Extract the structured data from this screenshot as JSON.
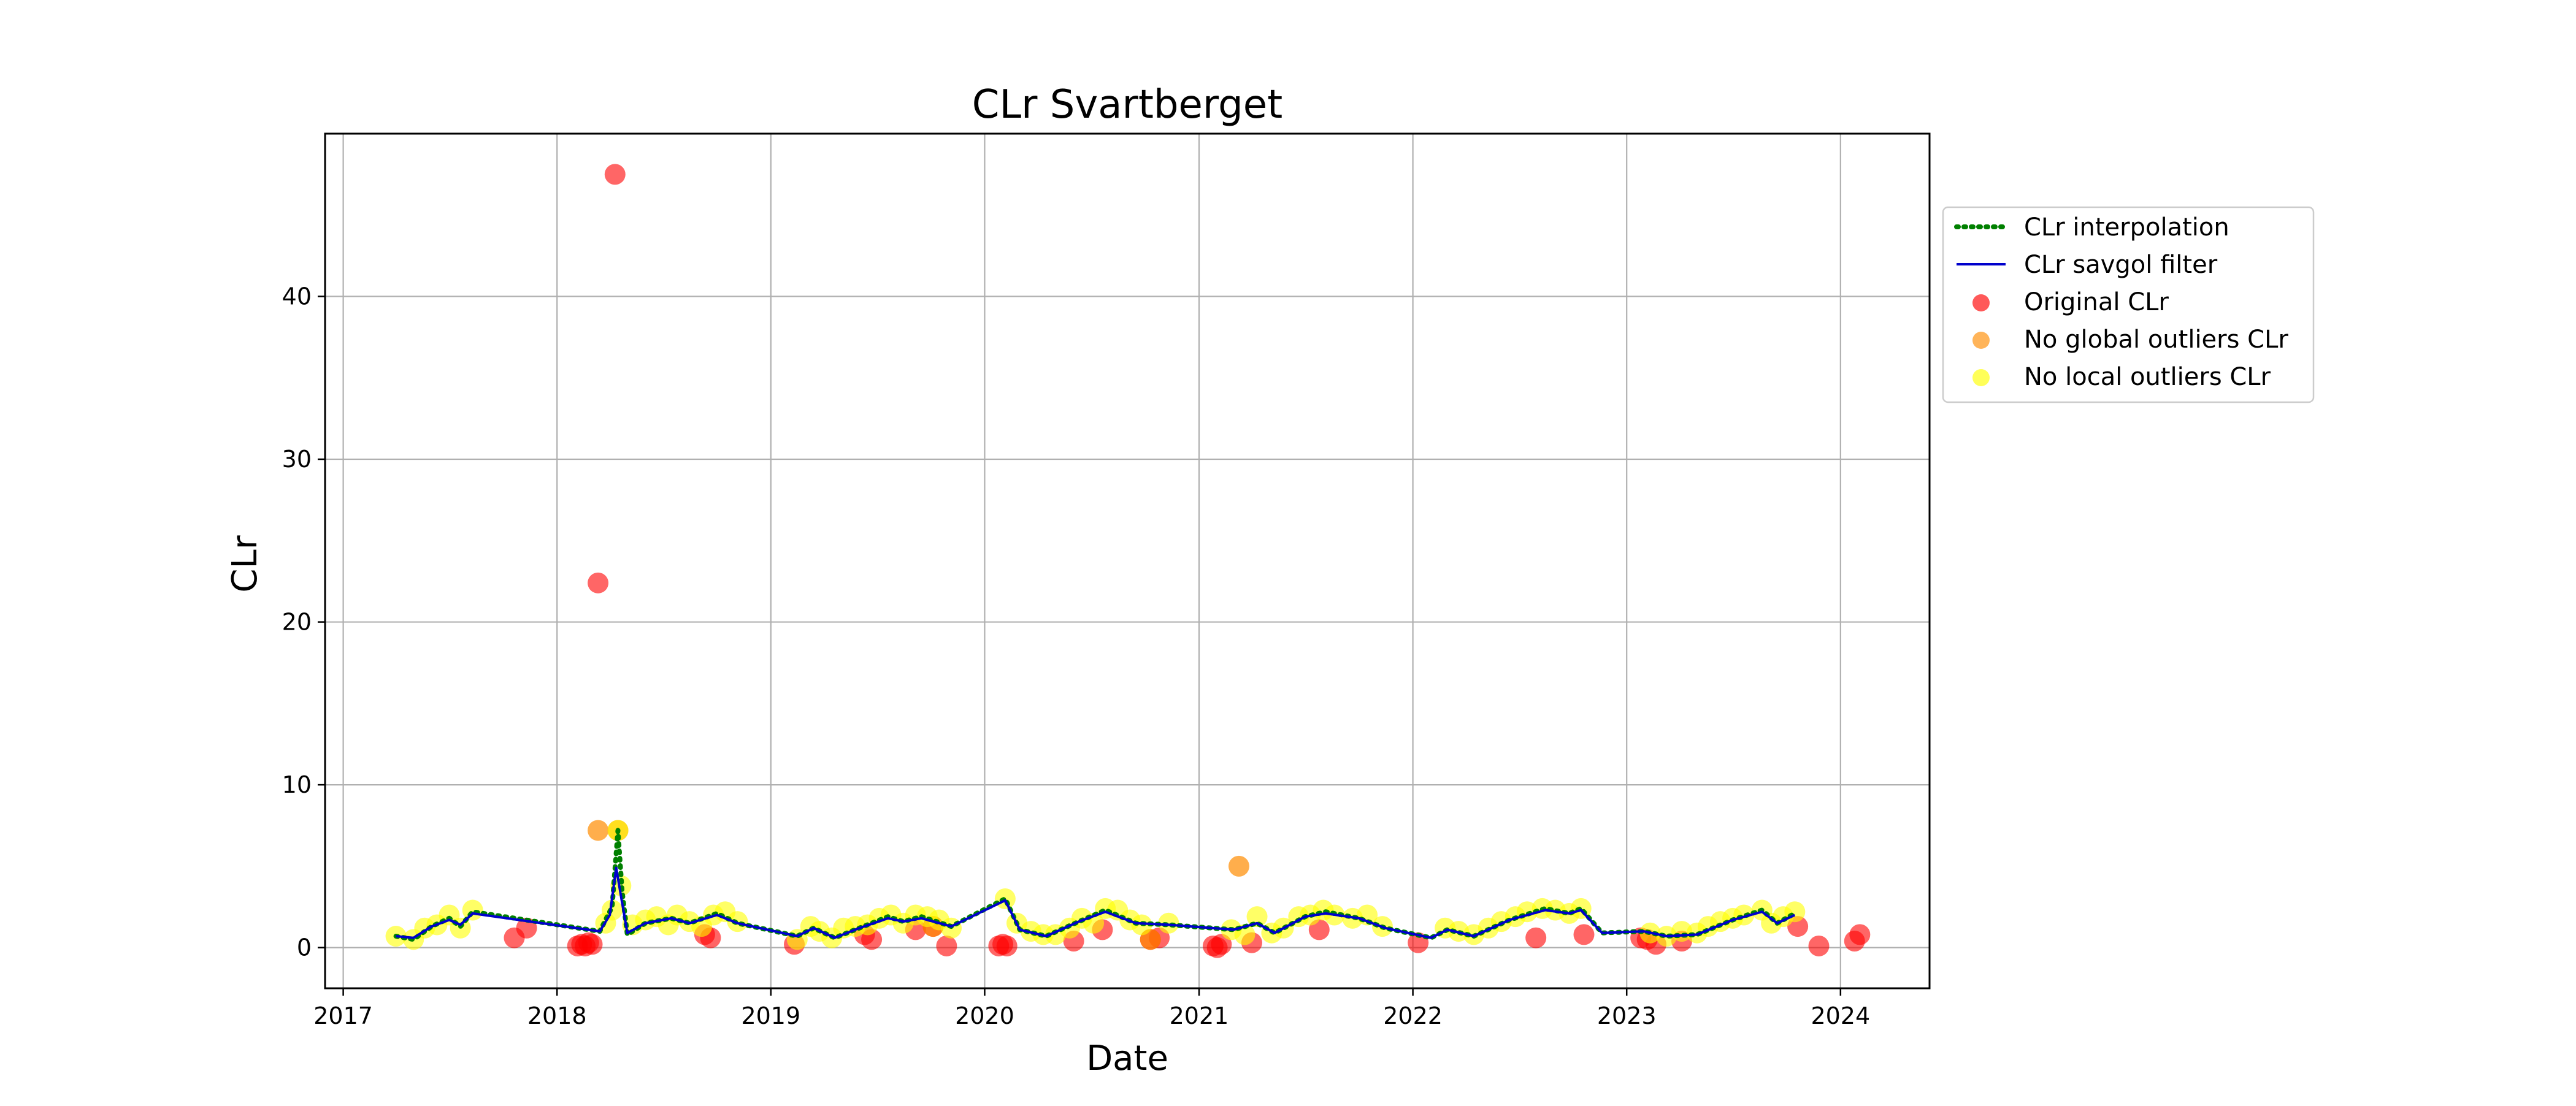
{
  "chart_data": {
    "type": "scatter",
    "title": "CLr Svartberget",
    "xlabel": "Date",
    "ylabel": "CLr",
    "x_is_date": true,
    "xlim": [
      "2016-12-01",
      "2024-06-01"
    ],
    "ylim": [
      -2.5,
      50
    ],
    "x_ticks": [
      "2017",
      "2018",
      "2019",
      "2020",
      "2021",
      "2022",
      "2023",
      "2024"
    ],
    "y_ticks": [
      0,
      10,
      20,
      30,
      40
    ],
    "grid": true,
    "legend_position": "outside-right-top",
    "legend": [
      {
        "label": "CLr interpolation",
        "style": "dotted-line",
        "color": "#008000"
      },
      {
        "label": "CLr savgol filter",
        "style": "line",
        "color": "#0000cc"
      },
      {
        "label": "Original CLr",
        "style": "marker",
        "color": "#ff0000"
      },
      {
        "label": "No global outliers CLr",
        "style": "marker",
        "color": "#ff8c00"
      },
      {
        "label": "No local outliers CLr",
        "style": "marker",
        "color": "#ffff00"
      }
    ],
    "series": [
      {
        "name": "Original CLr",
        "type": "scatter",
        "color": "#ff0000",
        "opacity": 0.6,
        "points": [
          [
            "2017-10-20",
            0.6
          ],
          [
            "2017-11-10",
            1.2
          ],
          [
            "2018-02-05",
            0.1
          ],
          [
            "2018-02-12",
            0.2
          ],
          [
            "2018-02-18",
            0.1
          ],
          [
            "2018-02-24",
            0.3
          ],
          [
            "2018-03-02",
            0.2
          ],
          [
            "2018-03-12",
            22.4
          ],
          [
            "2018-04-10",
            47.5
          ],
          [
            "2018-09-10",
            0.8
          ],
          [
            "2018-09-20",
            0.6
          ],
          [
            "2019-02-10",
            0.2
          ],
          [
            "2019-06-10",
            0.8
          ],
          [
            "2019-06-22",
            0.5
          ],
          [
            "2019-09-05",
            1.1
          ],
          [
            "2019-10-05",
            1.3
          ],
          [
            "2019-10-28",
            0.1
          ],
          [
            "2020-01-25",
            0.1
          ],
          [
            "2020-02-01",
            0.2
          ],
          [
            "2020-02-08",
            0.1
          ],
          [
            "2020-06-01",
            0.4
          ],
          [
            "2020-07-20",
            1.1
          ],
          [
            "2020-10-10",
            0.5
          ],
          [
            "2020-10-25",
            0.6
          ],
          [
            "2021-01-25",
            0.1
          ],
          [
            "2021-02-01",
            0.0
          ],
          [
            "2021-02-08",
            0.2
          ],
          [
            "2021-04-01",
            0.3
          ],
          [
            "2021-07-25",
            1.1
          ],
          [
            "2022-01-10",
            0.3
          ],
          [
            "2022-07-30",
            0.6
          ],
          [
            "2022-10-20",
            0.8
          ],
          [
            "2023-01-25",
            0.6
          ],
          [
            "2023-02-05",
            0.5
          ],
          [
            "2023-02-20",
            0.2
          ],
          [
            "2023-04-05",
            0.4
          ],
          [
            "2023-10-20",
            1.3
          ],
          [
            "2023-11-25",
            0.1
          ],
          [
            "2024-01-25",
            0.4
          ],
          [
            "2024-02-03",
            0.8
          ]
        ]
      },
      {
        "name": "No global outliers CLr",
        "type": "scatter",
        "color": "#ff8c00",
        "opacity": 0.7,
        "points": [
          [
            "2018-03-12",
            7.2
          ],
          [
            "2018-04-15",
            7.2
          ],
          [
            "2019-10-05",
            1.3
          ],
          [
            "2020-10-10",
            0.5
          ],
          [
            "2021-03-10",
            5.0
          ]
        ]
      },
      {
        "name": "No local outliers CLr",
        "type": "scatter",
        "color": "#ffff00",
        "opacity": 0.6,
        "points": [
          [
            "2017-04-01",
            0.7
          ],
          [
            "2017-05-01",
            0.5
          ],
          [
            "2017-05-20",
            1.2
          ],
          [
            "2017-06-10",
            1.4
          ],
          [
            "2017-07-01",
            2.0
          ],
          [
            "2017-07-20",
            1.2
          ],
          [
            "2017-08-10",
            2.3
          ],
          [
            "2018-03-25",
            1.5
          ],
          [
            "2018-04-05",
            2.3
          ],
          [
            "2018-04-15",
            7.2
          ],
          [
            "2018-04-20",
            3.8
          ],
          [
            "2018-05-10",
            1.4
          ],
          [
            "2018-06-01",
            1.7
          ],
          [
            "2018-06-20",
            1.9
          ],
          [
            "2018-07-10",
            1.4
          ],
          [
            "2018-07-25",
            2.0
          ],
          [
            "2018-08-15",
            1.6
          ],
          [
            "2018-09-05",
            1.3
          ],
          [
            "2018-09-25",
            2.0
          ],
          [
            "2018-10-15",
            2.2
          ],
          [
            "2018-11-05",
            1.6
          ],
          [
            "2019-02-15",
            0.5
          ],
          [
            "2019-03-10",
            1.3
          ],
          [
            "2019-03-25",
            1.0
          ],
          [
            "2019-04-15",
            0.6
          ],
          [
            "2019-05-05",
            1.2
          ],
          [
            "2019-05-25",
            1.3
          ],
          [
            "2019-06-15",
            1.4
          ],
          [
            "2019-07-05",
            1.8
          ],
          [
            "2019-07-25",
            2.0
          ],
          [
            "2019-08-15",
            1.5
          ],
          [
            "2019-09-05",
            2.0
          ],
          [
            "2019-09-25",
            1.9
          ],
          [
            "2019-10-15",
            1.7
          ],
          [
            "2019-11-05",
            1.2
          ],
          [
            "2020-02-05",
            3.0
          ],
          [
            "2020-02-25",
            1.5
          ],
          [
            "2020-03-20",
            1.0
          ],
          [
            "2020-04-10",
            0.8
          ],
          [
            "2020-05-01",
            0.8
          ],
          [
            "2020-05-25",
            1.2
          ],
          [
            "2020-06-15",
            1.8
          ],
          [
            "2020-07-05",
            1.5
          ],
          [
            "2020-07-25",
            2.4
          ],
          [
            "2020-08-15",
            2.3
          ],
          [
            "2020-09-05",
            1.7
          ],
          [
            "2020-09-25",
            1.4
          ],
          [
            "2020-11-10",
            1.5
          ],
          [
            "2021-02-25",
            1.1
          ],
          [
            "2021-03-20",
            0.8
          ],
          [
            "2021-04-10",
            1.9
          ],
          [
            "2021-05-05",
            0.9
          ],
          [
            "2021-05-25",
            1.2
          ],
          [
            "2021-06-20",
            1.9
          ],
          [
            "2021-07-10",
            2.0
          ],
          [
            "2021-08-01",
            2.3
          ],
          [
            "2021-08-20",
            2.0
          ],
          [
            "2021-09-20",
            1.8
          ],
          [
            "2021-10-15",
            2.0
          ],
          [
            "2021-11-10",
            1.3
          ],
          [
            "2022-02-25",
            1.2
          ],
          [
            "2022-03-20",
            1.0
          ],
          [
            "2022-04-15",
            0.8
          ],
          [
            "2022-05-10",
            1.2
          ],
          [
            "2022-06-01",
            1.6
          ],
          [
            "2022-06-25",
            1.9
          ],
          [
            "2022-07-15",
            2.2
          ],
          [
            "2022-08-10",
            2.4
          ],
          [
            "2022-09-01",
            2.3
          ],
          [
            "2022-09-25",
            2.1
          ],
          [
            "2022-10-15",
            2.4
          ],
          [
            "2023-02-10",
            0.9
          ],
          [
            "2023-03-10",
            0.7
          ],
          [
            "2023-04-05",
            1.0
          ],
          [
            "2023-05-01",
            0.9
          ],
          [
            "2023-05-20",
            1.3
          ],
          [
            "2023-06-10",
            1.6
          ],
          [
            "2023-07-01",
            1.8
          ],
          [
            "2023-07-20",
            2.0
          ],
          [
            "2023-08-20",
            2.3
          ],
          [
            "2023-09-05",
            1.5
          ],
          [
            "2023-09-25",
            1.9
          ],
          [
            "2023-10-15",
            2.2
          ]
        ]
      },
      {
        "name": "CLr interpolation",
        "type": "line",
        "dash": "dotted",
        "color": "#008000",
        "points": [
          [
            "2017-04-01",
            0.7
          ],
          [
            "2017-05-01",
            0.5
          ],
          [
            "2017-06-01",
            1.3
          ],
          [
            "2017-07-01",
            1.8
          ],
          [
            "2017-07-20",
            1.3
          ],
          [
            "2017-08-10",
            2.2
          ],
          [
            "2018-03-15",
            1.0
          ],
          [
            "2018-04-05",
            2.5
          ],
          [
            "2018-04-15",
            7.2
          ],
          [
            "2018-04-22",
            3.5
          ],
          [
            "2018-05-01",
            0.8
          ],
          [
            "2018-06-01",
            1.5
          ],
          [
            "2018-07-15",
            1.8
          ],
          [
            "2018-08-15",
            1.5
          ],
          [
            "2018-10-01",
            2.1
          ],
          [
            "2018-11-05",
            1.5
          ],
          [
            "2019-02-15",
            0.7
          ],
          [
            "2019-03-15",
            1.2
          ],
          [
            "2019-04-20",
            0.6
          ],
          [
            "2019-06-01",
            1.2
          ],
          [
            "2019-07-20",
            1.9
          ],
          [
            "2019-08-15",
            1.6
          ],
          [
            "2019-09-15",
            1.9
          ],
          [
            "2019-11-05",
            1.3
          ],
          [
            "2020-02-05",
            3.0
          ],
          [
            "2020-03-01",
            1.1
          ],
          [
            "2020-04-15",
            0.7
          ],
          [
            "2020-06-10",
            1.6
          ],
          [
            "2020-07-25",
            2.3
          ],
          [
            "2020-09-15",
            1.5
          ],
          [
            "2020-11-10",
            1.4
          ],
          [
            "2021-03-01",
            1.1
          ],
          [
            "2021-04-10",
            1.5
          ],
          [
            "2021-05-10",
            0.9
          ],
          [
            "2021-07-01",
            1.9
          ],
          [
            "2021-08-05",
            2.2
          ],
          [
            "2021-10-01",
            1.8
          ],
          [
            "2021-11-15",
            1.2
          ],
          [
            "2022-02-01",
            0.6
          ],
          [
            "2022-03-01",
            1.1
          ],
          [
            "2022-04-15",
            0.7
          ],
          [
            "2022-06-15",
            1.7
          ],
          [
            "2022-08-15",
            2.4
          ],
          [
            "2022-09-25",
            2.1
          ],
          [
            "2022-10-15",
            2.4
          ],
          [
            "2022-11-20",
            0.9
          ],
          [
            "2023-01-30",
            1.0
          ],
          [
            "2023-03-10",
            0.7
          ],
          [
            "2023-05-01",
            0.8
          ],
          [
            "2023-07-01",
            1.7
          ],
          [
            "2023-08-20",
            2.3
          ],
          [
            "2023-09-15",
            1.5
          ],
          [
            "2023-10-15",
            2.1
          ]
        ]
      },
      {
        "name": "CLr savgol filter",
        "type": "line",
        "color": "#0000cc",
        "points": [
          [
            "2017-04-01",
            0.7
          ],
          [
            "2017-05-01",
            0.6
          ],
          [
            "2017-06-01",
            1.3
          ],
          [
            "2017-07-01",
            1.7
          ],
          [
            "2017-07-20",
            1.4
          ],
          [
            "2017-08-10",
            2.1
          ],
          [
            "2018-03-15",
            1.0
          ],
          [
            "2018-04-01",
            2.0
          ],
          [
            "2018-04-12",
            4.9
          ],
          [
            "2018-04-20",
            3.2
          ],
          [
            "2018-05-01",
            0.9
          ],
          [
            "2018-06-01",
            1.5
          ],
          [
            "2018-07-15",
            1.8
          ],
          [
            "2018-08-15",
            1.5
          ],
          [
            "2018-10-01",
            2.0
          ],
          [
            "2018-11-05",
            1.5
          ],
          [
            "2019-02-15",
            0.7
          ],
          [
            "2019-03-15",
            1.2
          ],
          [
            "2019-04-20",
            0.6
          ],
          [
            "2019-06-01",
            1.2
          ],
          [
            "2019-07-20",
            1.8
          ],
          [
            "2019-08-15",
            1.6
          ],
          [
            "2019-09-15",
            1.8
          ],
          [
            "2019-11-05",
            1.3
          ],
          [
            "2020-02-05",
            2.9
          ],
          [
            "2020-03-01",
            1.1
          ],
          [
            "2020-04-15",
            0.7
          ],
          [
            "2020-06-10",
            1.6
          ],
          [
            "2020-07-25",
            2.2
          ],
          [
            "2020-09-15",
            1.5
          ],
          [
            "2020-11-10",
            1.4
          ],
          [
            "2021-03-01",
            1.1
          ],
          [
            "2021-04-10",
            1.5
          ],
          [
            "2021-05-10",
            0.9
          ],
          [
            "2021-07-01",
            1.9
          ],
          [
            "2021-08-05",
            2.1
          ],
          [
            "2021-10-01",
            1.8
          ],
          [
            "2021-11-15",
            1.2
          ],
          [
            "2022-02-01",
            0.6
          ],
          [
            "2022-03-01",
            1.1
          ],
          [
            "2022-04-15",
            0.7
          ],
          [
            "2022-06-15",
            1.7
          ],
          [
            "2022-08-15",
            2.3
          ],
          [
            "2022-09-25",
            2.1
          ],
          [
            "2022-10-15",
            2.3
          ],
          [
            "2022-11-20",
            0.9
          ],
          [
            "2023-01-30",
            1.0
          ],
          [
            "2023-03-10",
            0.7
          ],
          [
            "2023-05-01",
            0.8
          ],
          [
            "2023-07-01",
            1.7
          ],
          [
            "2023-08-20",
            2.2
          ],
          [
            "2023-09-15",
            1.5
          ],
          [
            "2023-10-15",
            2.0
          ]
        ]
      }
    ]
  }
}
